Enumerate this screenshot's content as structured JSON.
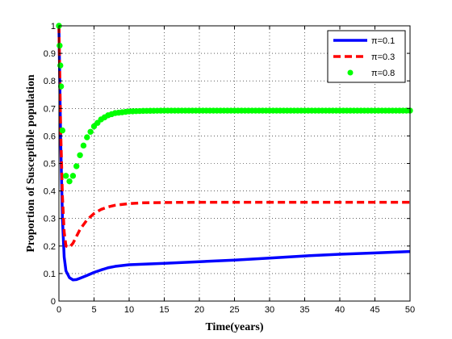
{
  "chart_data": {
    "type": "line",
    "title": "",
    "xlabel": "Time(years)",
    "ylabel": "Proportion of Susceptible population",
    "xlim": [
      0,
      50
    ],
    "ylim": [
      0,
      1
    ],
    "xticks": [
      "0",
      "5",
      "10",
      "15",
      "20",
      "25",
      "30",
      "35",
      "40",
      "45",
      "50"
    ],
    "yticks": [
      "0",
      "0.1",
      "0.2",
      "0.3",
      "0.4",
      "0.5",
      "0.6",
      "0.7",
      "0.8",
      "0.9",
      "1"
    ],
    "grid": "dotted",
    "legend_position": "top-right",
    "series": [
      {
        "name": "π=0.1",
        "color": "#0000ff",
        "style": "solid",
        "x": [
          0,
          0.25,
          0.5,
          0.75,
          1,
          1.5,
          2,
          2.5,
          3,
          4,
          5,
          6,
          7,
          8,
          10,
          15,
          20,
          25,
          30,
          35,
          40,
          45,
          50
        ],
        "y": [
          1.0,
          0.58,
          0.3,
          0.16,
          0.11,
          0.085,
          0.077,
          0.078,
          0.083,
          0.093,
          0.104,
          0.113,
          0.121,
          0.126,
          0.132,
          0.137,
          0.143,
          0.149,
          0.156,
          0.164,
          0.17,
          0.175,
          0.18
        ]
      },
      {
        "name": "π=0.3",
        "color": "#ff0000",
        "style": "dashed",
        "x": [
          0,
          0.25,
          0.5,
          0.75,
          1,
          1.5,
          2,
          2.5,
          3,
          4,
          5,
          6,
          7,
          8,
          10,
          12,
          15,
          20,
          25,
          30,
          35,
          40,
          45,
          50
        ],
        "y": [
          1.0,
          0.62,
          0.38,
          0.25,
          0.2,
          0.195,
          0.21,
          0.235,
          0.26,
          0.295,
          0.318,
          0.333,
          0.342,
          0.348,
          0.354,
          0.357,
          0.358,
          0.359,
          0.359,
          0.359,
          0.359,
          0.359,
          0.359,
          0.359
        ]
      },
      {
        "name": "π=0.8",
        "color": "#00ff00",
        "style": "markers",
        "x": [
          0,
          0.25,
          0.5,
          0.75,
          1,
          1.25,
          1.5,
          1.75,
          2,
          2.5,
          3,
          3.5,
          4,
          5,
          6,
          7,
          8,
          10,
          12,
          15,
          20,
          25,
          30,
          35,
          40,
          45,
          50
        ],
        "y": [
          1.0,
          0.82,
          0.62,
          0.5,
          0.455,
          0.437,
          0.435,
          0.44,
          0.455,
          0.49,
          0.53,
          0.565,
          0.595,
          0.635,
          0.66,
          0.675,
          0.683,
          0.689,
          0.691,
          0.692,
          0.692,
          0.692,
          0.692,
          0.692,
          0.692,
          0.692,
          0.692
        ]
      }
    ]
  }
}
